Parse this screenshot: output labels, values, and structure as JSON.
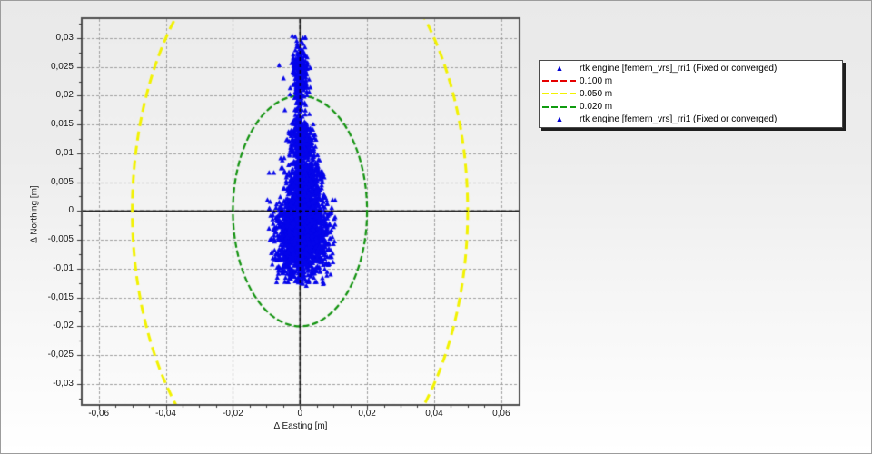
{
  "window": {
    "background_top": "#e9e9e9",
    "background_bottom": "#ffffff",
    "border_color": "#9c9c9c"
  },
  "chart_data": {
    "type": "scatter",
    "title": "",
    "xlabel": "Δ Easting [m]",
    "ylabel": "Δ Northing [m]",
    "xlim": [
      -0.0648,
      0.0652
    ],
    "ylim": [
      -0.0335,
      0.0333
    ],
    "grid": true,
    "decimal_separator": "comma",
    "plot_bg_top": "#ececec",
    "plot_bg_bottom": "#fbfbfb",
    "grid_color": "#9f9f9f",
    "border_color": "#4f4f4f",
    "axis_line_color": "#000000",
    "x_ticks": [
      {
        "v": -0.06,
        "label": "-0,06"
      },
      {
        "v": -0.04,
        "label": "-0,04"
      },
      {
        "v": -0.02,
        "label": "-0,02"
      },
      {
        "v": 0,
        "label": "0"
      },
      {
        "v": 0.02,
        "label": "0,02"
      },
      {
        "v": 0.04,
        "label": "0,04"
      },
      {
        "v": 0.06,
        "label": "0,06"
      }
    ],
    "y_ticks": [
      {
        "v": 0.03,
        "label": "0,03"
      },
      {
        "v": 0.025,
        "label": "0,025"
      },
      {
        "v": 0.02,
        "label": "0,02"
      },
      {
        "v": 0.015,
        "label": "0,015"
      },
      {
        "v": 0.01,
        "label": "0,01"
      },
      {
        "v": 0.005,
        "label": "0,005"
      },
      {
        "v": 0,
        "label": "0"
      },
      {
        "v": -0.005,
        "label": "-0,005"
      },
      {
        "v": -0.01,
        "label": "-0,01"
      },
      {
        "v": -0.015,
        "label": "-0,015"
      },
      {
        "v": -0.02,
        "label": "-0,02"
      },
      {
        "v": -0.025,
        "label": "-0,025"
      },
      {
        "v": -0.03,
        "label": "-0,03"
      }
    ],
    "x_gridlines": [
      -0.06,
      -0.04,
      -0.02,
      0.02,
      0.04,
      0.06
    ],
    "y_gridlines": [
      -0.03,
      -0.025,
      -0.02,
      -0.015,
      -0.01,
      -0.005,
      0.005,
      0.01,
      0.015,
      0.02,
      0.025,
      0.03
    ],
    "minor_tick_step_x": 0.005,
    "minor_tick_step_y": 0.0025,
    "series": [
      {
        "name": "rtk engine [femern_vrs]_rri1 (Fixed or converged)",
        "marker": "triangle",
        "color": "#0505ea"
      }
    ],
    "tolerance_circles": [
      {
        "label": "0.100 m",
        "radius_m": 0.1,
        "color": "#e60000",
        "dash": [
          10,
          6
        ],
        "width": 3
      },
      {
        "label": "0.050 m",
        "radius_m": 0.05,
        "color": "#f2f200",
        "dash": [
          10,
          6
        ],
        "width": 3
      },
      {
        "label": "0.020 m",
        "radius_m": 0.02,
        "color": "#12930f",
        "dash": [
          7,
          3
        ],
        "width": 2.2
      }
    ],
    "scatter_model": {
      "seed": 42,
      "clusters": [
        {
          "name": "core-main",
          "n": 1900,
          "cx": 0.0005,
          "sx": 0.0038,
          "cy": -0.004,
          "sy": 0.0038,
          "clip": [
            -0.0097,
            0.0107,
            -0.0127,
            0.002
          ]
        },
        {
          "name": "core-upper",
          "n": 750,
          "cx": 0.0012,
          "sx": 0.0028,
          "cy": 0.004,
          "sy": 0.003,
          "clip": [
            -0.0062,
            0.0078,
            0.0,
            0.0108
          ]
        },
        {
          "name": "neck",
          "n": 300,
          "cx": 0.0006,
          "sx": 0.0018,
          "cy": 0.0118,
          "sy": 0.0022,
          "clip": [
            -0.0042,
            0.0048,
            0.0095,
            0.0165
          ]
        },
        {
          "name": "trickle",
          "n": 55,
          "cx": 0.0,
          "sx": 0.0009,
          "cy": 0.0175,
          "sy": 0.0018,
          "clip": [
            -0.0028,
            0.0026,
            0.0148,
            0.0205
          ]
        },
        {
          "name": "spike",
          "n": 250,
          "cx": -0.0002,
          "sx": 0.0012,
          "cy": 0.0243,
          "sy": 0.0024,
          "clip": [
            -0.0046,
            0.0038,
            0.02,
            0.0304
          ]
        }
      ],
      "outlier_points": [
        [
          -0.0092,
          0.0066
        ],
        [
          -0.0078,
          0.0066
        ],
        [
          -0.0097,
          0.0019
        ],
        [
          0.0097,
          0.0019
        ],
        [
          0.0103,
          -0.0053
        ],
        [
          0.0088,
          -0.008
        ],
        [
          0.0068,
          -0.0123
        ],
        [
          0.0019,
          -0.013
        ],
        [
          -0.0014,
          -0.0122
        ],
        [
          -0.0054,
          -0.0104
        ],
        [
          -0.0062,
          0.0253
        ],
        [
          -0.0049,
          0.023
        ],
        [
          -0.0014,
          0.0302
        ],
        [
          0.0008,
          0.03
        ],
        [
          -0.0045,
          0.0175
        ],
        [
          0.0028,
          0.0168
        ]
      ]
    }
  },
  "legend": {
    "items": [
      {
        "type": "marker",
        "label": "rtk engine [femern_vrs]_rri1 (Fixed or converged)",
        "color": "#0000d2"
      },
      {
        "type": "dash",
        "label": "0.100 m",
        "color": "#e60000"
      },
      {
        "type": "dash",
        "label": "0.050 m",
        "color": "#f2f200"
      },
      {
        "type": "dash",
        "label": "0.020 m",
        "color": "#0f9b0f"
      },
      {
        "type": "marker",
        "label": "rtk engine [femern_vrs]_rri1 (Fixed or converged)",
        "color": "#0000d2"
      }
    ]
  }
}
